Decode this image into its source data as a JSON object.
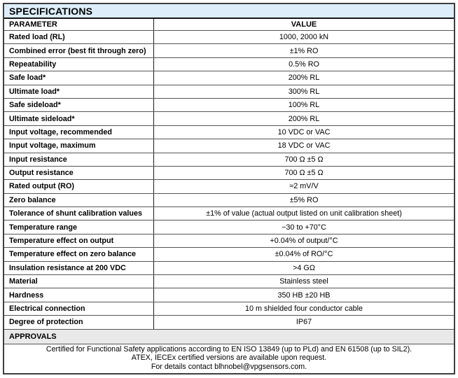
{
  "table": {
    "title": "SPECIFICATIONS",
    "columns": {
      "parameter": "PARAMETER",
      "value": "VALUE"
    },
    "rows": [
      {
        "parameter": "Rated load (RL)",
        "value": "1000, 2000 kN"
      },
      {
        "parameter": "Combined error (best fit through zero)",
        "value": "±1% RO"
      },
      {
        "parameter": "Repeatability",
        "value": "0.5% RO"
      },
      {
        "parameter": "Safe load*",
        "value": "200% RL"
      },
      {
        "parameter": "Ultimate load*",
        "value": "300% RL"
      },
      {
        "parameter": "Safe sideload*",
        "value": "100% RL"
      },
      {
        "parameter": "Ultimate sideload*",
        "value": "200% RL"
      },
      {
        "parameter": "Input voltage, recommended",
        "value": "10 VDC or VAC"
      },
      {
        "parameter": "Input voltage, maximum",
        "value": "18 VDC or VAC"
      },
      {
        "parameter": "Input resistance",
        "value": "700 Ω ±5 Ω"
      },
      {
        "parameter": "Output resistance",
        "value": "700 Ω ±5 Ω"
      },
      {
        "parameter": "Rated output (RO)",
        "value": "≈2 mV/V"
      },
      {
        "parameter": "Zero balance",
        "value": "±5% RO"
      },
      {
        "parameter": "Tolerance of shunt calibration values",
        "value": "±1% of value (actual output listed on unit calibration sheet)"
      },
      {
        "parameter": "Temperature range",
        "value": "−30 to +70°C"
      },
      {
        "parameter": "Temperature effect on output",
        "value": "+0.04% of output/°C"
      },
      {
        "parameter": "Temperature effect on zero balance",
        "value": "±0.04% of RO/°C"
      },
      {
        "parameter": "Insulation resistance at 200 VDC",
        "value": ">4 GΩ"
      },
      {
        "parameter": "Material",
        "value": "Stainless steel"
      },
      {
        "parameter": "Hardness",
        "value": "350 HB ±20 HB"
      },
      {
        "parameter": "Electrical connection",
        "value": "10 m shielded four conductor cable"
      },
      {
        "parameter": "Degree of protection",
        "value": "IP67"
      }
    ],
    "approvals": {
      "title": "APPROVALS",
      "lines": [
        "Certified for Functional Safety applications according to EN ISO 13849 (up to PLd) and EN 61508 (up to SIL2).",
        "ATEX, IECEx certified versions are available upon request.",
        "For details contact blhnobel@vpgsensors.com."
      ]
    },
    "colors": {
      "title_bg": "#ddeefa",
      "approvals_bg": "#e9e9e9",
      "border_dark": "#3f3f3f",
      "row_separator": "#565656"
    }
  }
}
